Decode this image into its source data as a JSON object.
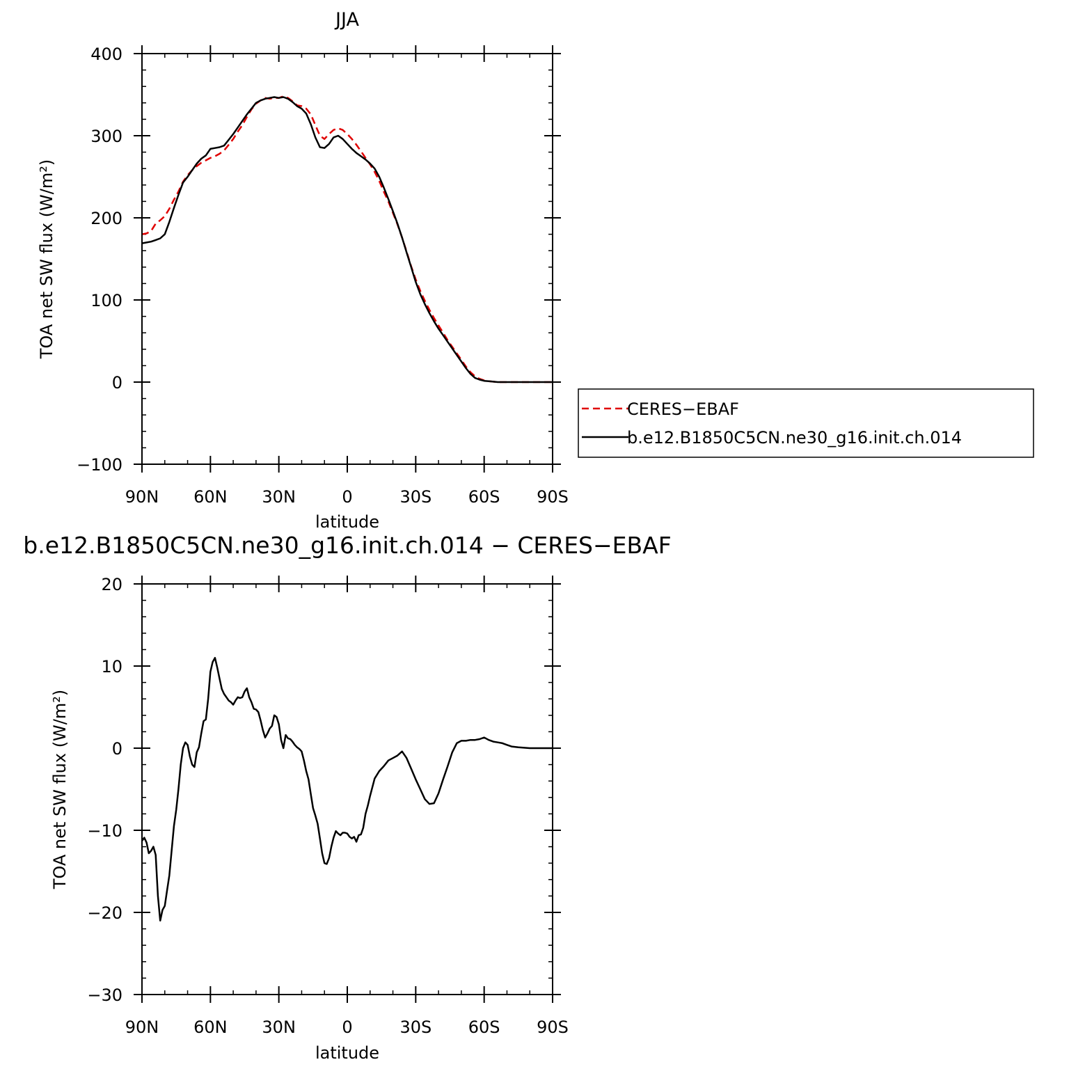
{
  "chart_data": [
    {
      "type": "line",
      "title": "JJA",
      "xlabel": "latitude",
      "ylabel": "TOA net SW flux (W/m²)",
      "xlim": [
        90,
        -90
      ],
      "ylim": [
        -100,
        400
      ],
      "xticks": [
        90,
        60,
        30,
        0,
        -30,
        -60,
        -90
      ],
      "xtick_labels": [
        "90N",
        "60N",
        "30N",
        "0",
        "30S",
        "60S",
        "90S"
      ],
      "yticks": [
        -100,
        0,
        100,
        200,
        300,
        400
      ],
      "ytick_labels": [
        "−100",
        "0",
        "100",
        "200",
        "300",
        "400"
      ],
      "grid": false,
      "legend": "right",
      "series": [
        {
          "name": "CERES−EBAF",
          "style": "dashed",
          "color": "#e00000",
          "x": [
            90,
            88,
            86,
            84,
            82,
            80,
            78,
            76,
            74,
            72,
            70,
            68,
            66,
            64,
            62,
            60,
            58,
            56,
            54,
            52,
            50,
            48,
            46,
            44,
            42,
            40,
            38,
            36,
            34,
            32,
            30,
            28,
            26,
            24,
            22,
            20,
            18,
            16,
            14,
            12,
            10,
            8,
            6,
            4,
            2,
            0,
            -2,
            -4,
            -6,
            -8,
            -10,
            -12,
            -14,
            -16,
            -18,
            -20,
            -22,
            -24,
            -26,
            -28,
            -30,
            -32,
            -34,
            -36,
            -38,
            -40,
            -42,
            -44,
            -46,
            -48,
            -50,
            -52,
            -54,
            -56,
            -58,
            -60,
            -62,
            -64,
            -66,
            -68,
            -70,
            -72,
            -75,
            -80,
            -85,
            -90
          ],
          "values": [
            180,
            181,
            184,
            193,
            197,
            202,
            211,
            222,
            232,
            244,
            252,
            258,
            263,
            267,
            270,
            273,
            275,
            278,
            282,
            289,
            296,
            305,
            313,
            323,
            332,
            339,
            343,
            346,
            345,
            346,
            346,
            348,
            346,
            342,
            337,
            336,
            333,
            326,
            313,
            300,
            296,
            302,
            307,
            309,
            307,
            302,
            296,
            289,
            281,
            273,
            265,
            256,
            245,
            232,
            220,
            206,
            192,
            176,
            159,
            141,
            125,
            111,
            99,
            88,
            78,
            69,
            60,
            51,
            43,
            35,
            27,
            19,
            12,
            7,
            4,
            2,
            1,
            0.5,
            0,
            0,
            0,
            0,
            0,
            0,
            0,
            0
          ]
        },
        {
          "name": "b.e12.B1850C5CN.ne30_g16.init.ch.014",
          "style": "solid",
          "color": "#000000",
          "x": [
            90,
            88,
            86,
            84,
            82,
            80,
            78,
            76,
            74,
            72,
            70,
            68,
            66,
            64,
            62,
            60,
            58,
            56,
            54,
            52,
            50,
            48,
            46,
            44,
            42,
            40,
            38,
            36,
            34,
            32,
            30,
            28,
            26,
            24,
            22,
            20,
            18,
            16,
            14,
            12,
            10,
            8,
            6,
            4,
            2,
            0,
            -2,
            -4,
            -6,
            -8,
            -10,
            -12,
            -14,
            -16,
            -18,
            -20,
            -22,
            -24,
            -26,
            -28,
            -30,
            -32,
            -34,
            -36,
            -38,
            -40,
            -42,
            -44,
            -46,
            -48,
            -50,
            -52,
            -54,
            -56,
            -58,
            -60,
            -62,
            -64,
            -66,
            -68,
            -70,
            -72,
            -75,
            -80,
            -85,
            -90
          ],
          "values": [
            169,
            170,
            171,
            173,
            175,
            180,
            195,
            212,
            228,
            243,
            250,
            258,
            266,
            272,
            276,
            284,
            285,
            286,
            288,
            295,
            302,
            310,
            318,
            326,
            333,
            340,
            343,
            345,
            346,
            347,
            346,
            347,
            345,
            341,
            336,
            333,
            327,
            314,
            298,
            286,
            285,
            290,
            298,
            300,
            296,
            290,
            284,
            279,
            275,
            271,
            266,
            260,
            250,
            237,
            223,
            208,
            193,
            176,
            158,
            140,
            122,
            107,
            95,
            84,
            74,
            65,
            57,
            49,
            41,
            33,
            25,
            17,
            10,
            5,
            3,
            1.5,
            1,
            0.5,
            0,
            0,
            0,
            0,
            0,
            0,
            0,
            0
          ]
        }
      ]
    },
    {
      "type": "line",
      "title": "b.e12.B1850C5CN.ne30_g16.init.ch.014 − CERES−EBAF",
      "xlabel": "latitude",
      "ylabel": "TOA net SW flux (W/m²)",
      "xlim": [
        90,
        -90
      ],
      "ylim": [
        -30,
        20
      ],
      "xticks": [
        90,
        60,
        30,
        0,
        -30,
        -60,
        -90
      ],
      "xtick_labels": [
        "90N",
        "60N",
        "30N",
        "0",
        "30S",
        "60S",
        "90S"
      ],
      "yticks": [
        -30,
        -20,
        -10,
        0,
        10,
        20
      ],
      "ytick_labels": [
        "−30",
        "−20",
        "−10",
        "0",
        "10",
        "20"
      ],
      "grid": false,
      "series": [
        {
          "style": "solid",
          "color": "#000000",
          "x": [
            90,
            89,
            88,
            87,
            86,
            85,
            84,
            83,
            82,
            81,
            80,
            79,
            78,
            77,
            76,
            75,
            74,
            73,
            72,
            71,
            70,
            69,
            68,
            67,
            66,
            65,
            64,
            63,
            62,
            61,
            60,
            59,
            58,
            57,
            56,
            55,
            54,
            53,
            52,
            51,
            50,
            49,
            48,
            47,
            46,
            45,
            44,
            43,
            42,
            41,
            40,
            39,
            38,
            37,
            36,
            35,
            34,
            33,
            32,
            31,
            30,
            29,
            28,
            27,
            26,
            25,
            24,
            23,
            22,
            21,
            20,
            19,
            18,
            17,
            16,
            15,
            14,
            13,
            12,
            11,
            10,
            9,
            8,
            7,
            6,
            5,
            4,
            3,
            2,
            1,
            0,
            -1,
            -2,
            -3,
            -4,
            -5,
            -6,
            -7,
            -8,
            -9,
            -10,
            -12,
            -14,
            -16,
            -18,
            -20,
            -22,
            -24,
            -26,
            -28,
            -30,
            -32,
            -34,
            -36,
            -38,
            -40,
            -42,
            -44,
            -46,
            -48,
            -50,
            -52,
            -54,
            -56,
            -58,
            -60,
            -62,
            -64,
            -66,
            -68,
            -70,
            -72,
            -75,
            -80,
            -85,
            -90
          ],
          "values": [
            -11.3,
            -10.9,
            -11.5,
            -12.8,
            -12.5,
            -12.0,
            -13.0,
            -18.0,
            -21.0,
            -19.7,
            -19.2,
            -17.3,
            -15.5,
            -12.5,
            -9.5,
            -7.5,
            -5.0,
            -2.0,
            0.0,
            0.7,
            0.4,
            -1.0,
            -2.0,
            -2.3,
            -0.5,
            0.1,
            1.8,
            3.3,
            3.5,
            6.0,
            9.3,
            10.5,
            11.0,
            9.8,
            8.5,
            7.2,
            6.6,
            6.2,
            5.8,
            5.6,
            5.3,
            5.8,
            6.2,
            6.1,
            6.2,
            6.9,
            7.3,
            6.2,
            5.6,
            4.8,
            4.7,
            4.4,
            3.4,
            2.2,
            1.3,
            1.8,
            2.4,
            2.7,
            4.0,
            3.8,
            2.9,
            1.0,
            0.0,
            1.6,
            1.2,
            1.1,
            0.8,
            0.4,
            0.1,
            -0.1,
            -0.4,
            -1.5,
            -2.8,
            -3.8,
            -5.6,
            -7.3,
            -8.2,
            -9.2,
            -11.0,
            -12.8,
            -14.0,
            -14.1,
            -13.4,
            -12.0,
            -10.9,
            -10.1,
            -10.4,
            -10.6,
            -10.3,
            -10.3,
            -10.4,
            -10.8,
            -11.0,
            -10.8,
            -11.4,
            -10.6,
            -10.5,
            -9.7,
            -8.0,
            -7.0,
            -5.8,
            -3.7,
            -2.8,
            -2.2,
            -1.5,
            -1.2,
            -0.9,
            -0.4,
            -1.2,
            -2.5,
            -3.8,
            -5.0,
            -6.2,
            -6.8,
            -6.7,
            -5.5,
            -3.8,
            -2.2,
            -0.5,
            0.6,
            0.9,
            0.9,
            1.0,
            1.0,
            1.1,
            1.3,
            1.0,
            0.8,
            0.7,
            0.6,
            0.4,
            0.2,
            0.1,
            0.0,
            0.0,
            0.0
          ]
        }
      ]
    }
  ],
  "legend": {
    "entries": [
      "CERES−EBAF",
      "b.e12.B1850C5CN.ne30_g16.init.ch.014"
    ]
  }
}
